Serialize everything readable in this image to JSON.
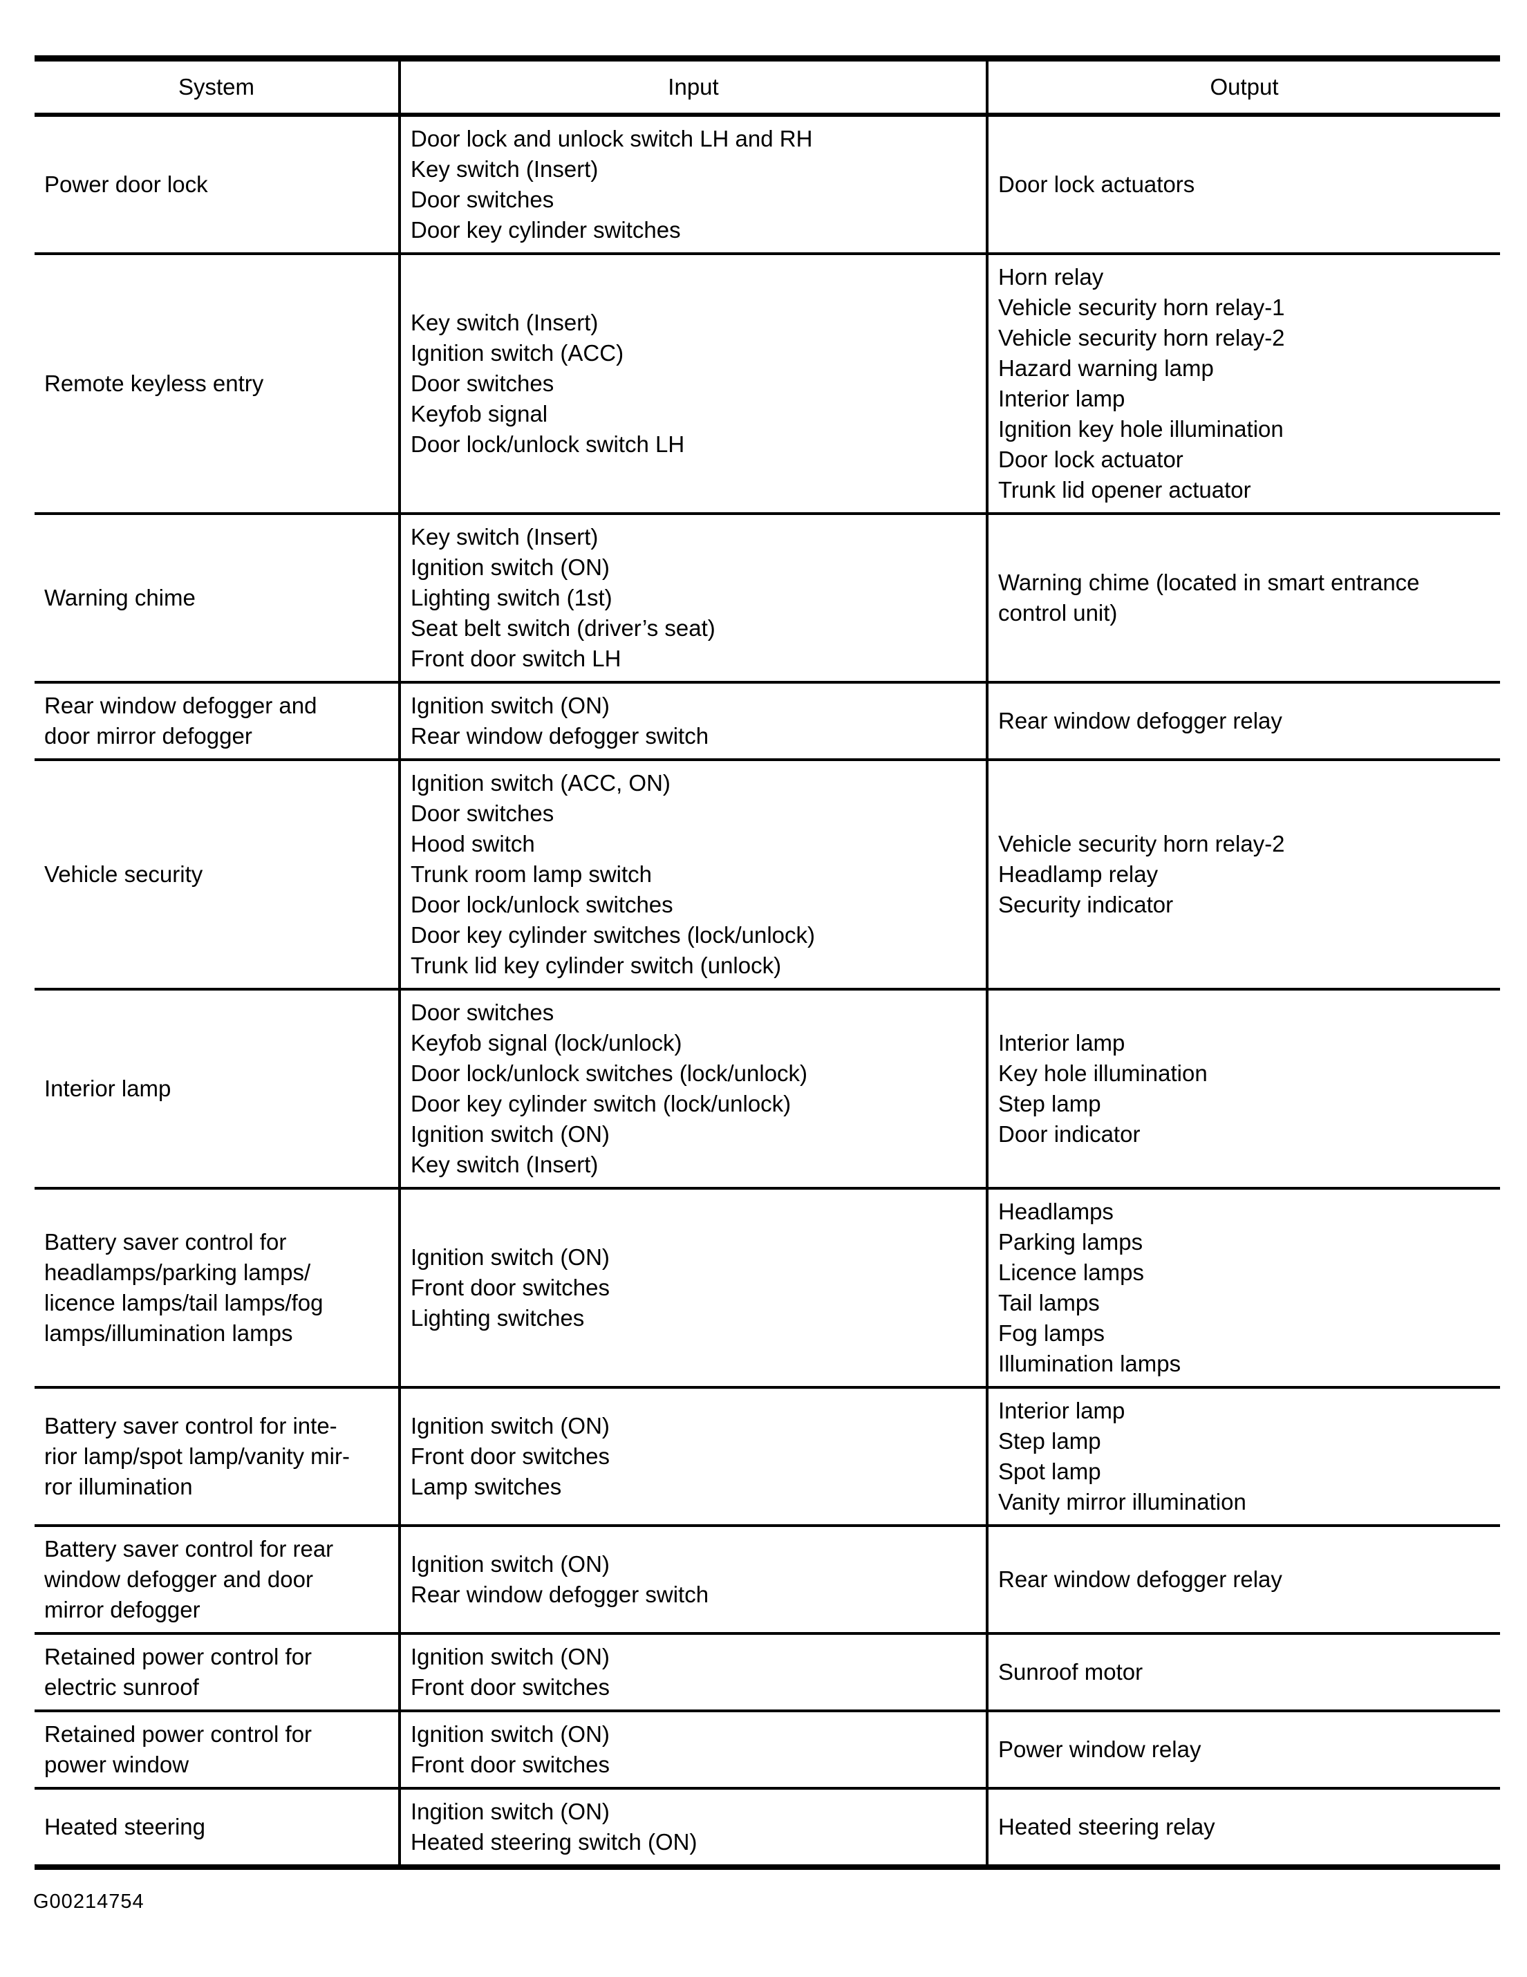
{
  "table": {
    "headers": [
      "System",
      "Input",
      "Output"
    ],
    "rows": [
      {
        "system": [
          "Power door lock"
        ],
        "input": [
          "Door lock and unlock switch LH and RH",
          "Key switch (Insert)",
          "Door switches",
          "Door key cylinder switches"
        ],
        "output": [
          "Door lock actuators"
        ]
      },
      {
        "system": [
          "Remote keyless entry"
        ],
        "input": [
          "Key switch (Insert)",
          "Ignition switch (ACC)",
          "Door switches",
          "Keyfob signal",
          "Door lock/unlock switch LH"
        ],
        "output": [
          "Horn relay",
          "Vehicle security horn relay-1",
          "Vehicle security horn relay-2",
          "Hazard warning lamp",
          "Interior lamp",
          "Ignition key hole illumination",
          "Door lock actuator",
          "Trunk lid opener actuator"
        ]
      },
      {
        "system": [
          "Warning chime"
        ],
        "input": [
          "Key switch (Insert)",
          "Ignition switch (ON)",
          "Lighting switch (1st)",
          "Seat belt switch (driver’s seat)",
          "Front door switch LH"
        ],
        "output": [
          "Warning chime (located in smart entrance",
          "control unit)"
        ]
      },
      {
        "system": [
          "Rear window defogger and",
          "door mirror defogger"
        ],
        "input": [
          "Ignition switch (ON)",
          "Rear window defogger switch"
        ],
        "output": [
          "Rear window defogger relay"
        ]
      },
      {
        "system": [
          "Vehicle security"
        ],
        "input": [
          "Ignition switch (ACC, ON)",
          "Door switches",
          "Hood switch",
          "Trunk room lamp switch",
          "Door lock/unlock switches",
          "Door key cylinder switches (lock/unlock)",
          "Trunk lid key cylinder switch (unlock)"
        ],
        "output": [
          "Vehicle security horn relay-2",
          "Headlamp relay",
          "Security indicator"
        ]
      },
      {
        "system": [
          "Interior lamp"
        ],
        "input": [
          "Door switches",
          "Keyfob signal (lock/unlock)",
          "Door lock/unlock switches (lock/unlock)",
          "Door key cylinder switch (lock/unlock)",
          "Ignition switch (ON)",
          "Key switch (Insert)"
        ],
        "output": [
          "Interior lamp",
          "Key hole illumination",
          "Step lamp",
          "Door indicator"
        ]
      },
      {
        "system": [
          "Battery saver control for",
          "headlamps/parking lamps/",
          "licence lamps/tail lamps/fog",
          "lamps/illumination lamps"
        ],
        "input": [
          "Ignition switch (ON)",
          "Front door switches",
          "Lighting switches"
        ],
        "output": [
          "Headlamps",
          "Parking lamps",
          "Licence lamps",
          "Tail lamps",
          "Fog lamps",
          "Illumination lamps"
        ]
      },
      {
        "system": [
          "Battery saver control for inte-",
          "rior lamp/spot lamp/vanity mir-",
          "ror illumination"
        ],
        "input": [
          "Ignition switch (ON)",
          "Front door switches",
          "Lamp switches"
        ],
        "output": [
          "Interior lamp",
          "Step lamp",
          "Spot lamp",
          "Vanity mirror illumination"
        ]
      },
      {
        "system": [
          "Battery saver control for rear",
          "window defogger and door",
          "mirror defogger"
        ],
        "input": [
          "Ignition switch (ON)",
          "Rear window defogger switch"
        ],
        "output": [
          "Rear window defogger relay"
        ]
      },
      {
        "system": [
          "Retained power control for",
          "electric sunroof"
        ],
        "input": [
          "Ignition switch (ON)",
          "Front door switches"
        ],
        "output": [
          "Sunroof motor"
        ]
      },
      {
        "system": [
          "Retained power control for",
          "power window"
        ],
        "input": [
          "Ignition switch (ON)",
          "Front door switches"
        ],
        "output": [
          "Power window relay"
        ]
      },
      {
        "system": [
          "Heated steering"
        ],
        "input": [
          "Ingition switch (ON)",
          "Heated steering switch (ON)"
        ],
        "output": [
          "Heated steering relay"
        ]
      }
    ]
  },
  "footer": {
    "figure_id": "G00214754"
  }
}
